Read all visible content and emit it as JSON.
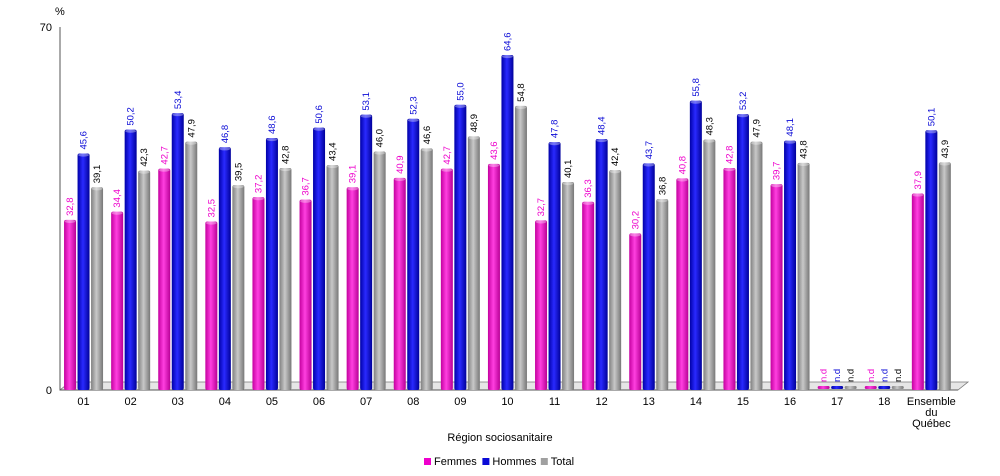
{
  "chart_data": {
    "type": "bar",
    "ylabel": "%",
    "xlabel": "Région sociosanitaire",
    "ylim": [
      0,
      70
    ],
    "ytick_labels": [
      "0",
      "70"
    ],
    "categories": [
      "01",
      "02",
      "03",
      "04",
      "05",
      "06",
      "07",
      "08",
      "09",
      "10",
      "11",
      "12",
      "13",
      "14",
      "15",
      "16",
      "17",
      "18",
      "Ensemble du Québec"
    ],
    "series": [
      {
        "name": "Femmes",
        "color": "#ee00cc",
        "values": [
          32.8,
          34.4,
          42.7,
          32.5,
          37.2,
          36.7,
          39.1,
          40.9,
          42.7,
          43.6,
          32.7,
          36.3,
          30.2,
          40.8,
          42.8,
          39.7,
          null,
          null,
          37.9
        ],
        "labels": [
          "32,8",
          "34,4",
          "42,7",
          "32,5",
          "37,2",
          "36,7",
          "39,1",
          "40,9",
          "42,7",
          "43,6",
          "32,7",
          "36,3",
          "30,2",
          "40,8",
          "42,8",
          "39,7",
          "n.d",
          "n.d",
          "37,9"
        ]
      },
      {
        "name": "Hommes",
        "color": "#0a0ad6",
        "values": [
          45.6,
          50.2,
          53.4,
          46.8,
          48.6,
          50.6,
          53.1,
          52.3,
          55.0,
          64.6,
          47.8,
          48.4,
          43.7,
          55.8,
          53.2,
          48.1,
          null,
          null,
          50.1
        ],
        "labels": [
          "45,6",
          "50,2",
          "53,4",
          "46,8",
          "48,6",
          "50,6",
          "53,1",
          "52,3",
          "55,0",
          "64,6",
          "47,8",
          "48,4",
          "43,7",
          "55,8",
          "53,2",
          "48,1",
          "n.d",
          "n.d",
          "50,1"
        ]
      },
      {
        "name": "Total",
        "color": "#a0a0a0",
        "values": [
          39.1,
          42.3,
          47.9,
          39.5,
          42.8,
          43.4,
          46.0,
          46.6,
          48.9,
          54.8,
          40.1,
          42.4,
          36.8,
          48.3,
          47.9,
          43.8,
          null,
          null,
          43.9
        ],
        "labels": [
          "39,1",
          "42,3",
          "47,9",
          "39,5",
          "42,8",
          "43,4",
          "46,0",
          "46,6",
          "48,9",
          "54,8",
          "40,1",
          "42,4",
          "36,8",
          "48,3",
          "47,9",
          "43,8",
          "n.d",
          "n.d",
          "43,9"
        ]
      }
    ],
    "label_colors": {
      "Femmes": "#ee00cc",
      "Hommes": "#0a0ad6",
      "Total": "#000000"
    },
    "legend_position": "bottom-center",
    "grid": false
  }
}
